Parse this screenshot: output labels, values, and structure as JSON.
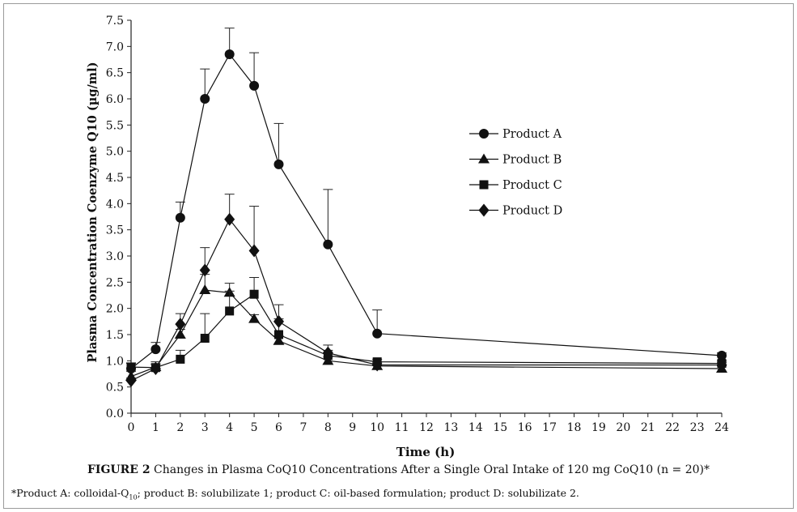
{
  "chart_data": {
    "type": "line",
    "xlabel": "Time (h)",
    "ylabel": "Plasma Concentration Coenzyme Q10 (µg/ml)",
    "x_ticks": [
      0,
      1,
      2,
      3,
      4,
      5,
      6,
      7,
      8,
      9,
      10,
      11,
      12,
      13,
      14,
      15,
      16,
      17,
      18,
      19,
      20,
      21,
      22,
      23,
      24
    ],
    "y_ticks": [
      "0.0",
      "0.5",
      "1.0",
      "1.5",
      "2.0",
      "2.5",
      "3.0",
      "3.5",
      "4.0",
      "4.5",
      "5.0",
      "5.5",
      "6.0",
      "6.5",
      "7.0",
      "7.5"
    ],
    "xlim": [
      0,
      24
    ],
    "ylim": [
      0,
      7.5
    ],
    "grid": false,
    "legend_position": "right",
    "series": [
      {
        "name": "Product A",
        "marker": "circle",
        "x": [
          0,
          1,
          2,
          3,
          4,
          5,
          6,
          8,
          10,
          24
        ],
        "y": [
          0.85,
          1.22,
          3.73,
          6.0,
          6.85,
          6.25,
          4.75,
          3.22,
          1.52,
          1.1
        ],
        "err": [
          0.1,
          0.13,
          0.3,
          0.57,
          0.5,
          0.63,
          0.78,
          1.05,
          0.45,
          0.05
        ]
      },
      {
        "name": "Product B",
        "marker": "triangle",
        "x": [
          0,
          1,
          2,
          3,
          4,
          5,
          6,
          8,
          10,
          24
        ],
        "y": [
          0.7,
          0.88,
          1.5,
          2.35,
          2.3,
          1.8,
          1.38,
          1.0,
          0.9,
          0.85
        ],
        "err": [
          0.1,
          0.1,
          0.1,
          0.3,
          0.18,
          0.08,
          0.1,
          0.07,
          0.05,
          0.05
        ]
      },
      {
        "name": "Product C",
        "marker": "square",
        "x": [
          0,
          1,
          2,
          3,
          4,
          5,
          6,
          8,
          10,
          24
        ],
        "y": [
          0.88,
          0.87,
          1.03,
          1.43,
          1.95,
          2.27,
          1.5,
          1.1,
          0.98,
          0.95
        ],
        "err": [
          0.08,
          0.07,
          0.17,
          0.47,
          0.38,
          0.32,
          0.3,
          0.1,
          0.05,
          0.05
        ]
      },
      {
        "name": "Product D",
        "marker": "diamond",
        "x": [
          0,
          1,
          2,
          3,
          4,
          5,
          6,
          8,
          10,
          24
        ],
        "y": [
          0.62,
          0.85,
          1.7,
          2.73,
          3.7,
          3.1,
          1.75,
          1.15,
          0.92,
          0.92
        ],
        "err": [
          0.05,
          0.08,
          0.2,
          0.43,
          0.48,
          0.85,
          0.32,
          0.15,
          0.05,
          0.05
        ]
      }
    ]
  },
  "caption": {
    "label": "FIGURE 2",
    "text": " Changes in Plasma CoQ10 Concentrations After a Single Oral Intake of 120 mg CoQ10 (n = 20)*"
  },
  "footnote": {
    "part1": "*Product A: colloidal-Q",
    "sub": "10",
    "part2": "; product B: solubilizate 1; product C: oil-based formulation; product D: solubilizate 2."
  }
}
